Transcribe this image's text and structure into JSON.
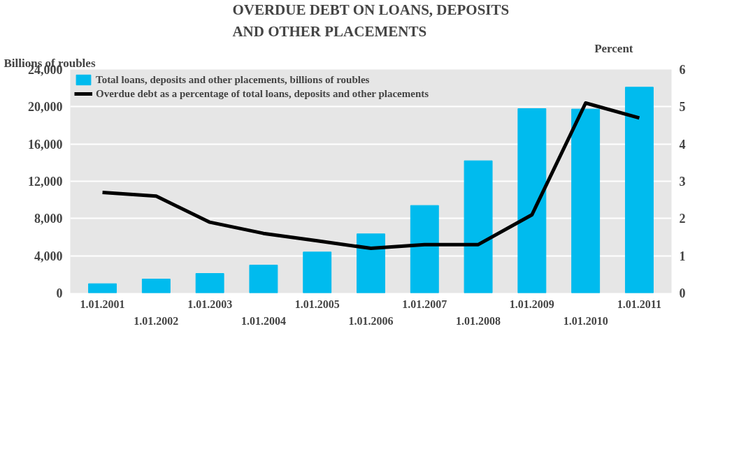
{
  "chart_data": {
    "type": "bar",
    "title": "OVERDUE DEBT ON LOANS, DEPOSITS\nAND OTHER PLACEMENTS",
    "ylabel": "Billions of roubles",
    "y2label": "Percent",
    "categories": [
      "1.01.2001",
      "1.01.2002",
      "1.01.2003",
      "1.01.2004",
      "1.01.2005",
      "1.01.2006",
      "1.01.2007",
      "1.01.2008",
      "1.01.2009",
      "1.01.2010",
      "1.01.2011"
    ],
    "series": [
      {
        "name": "Total loans, deposits and other placements, billions of roubles",
        "color": "#00bbee",
        "values": [
          1000,
          1500,
          2100,
          3000,
          4400,
          6350,
          9400,
          14200,
          19800,
          19750,
          22100
        ]
      },
      {
        "name": "Overdue debt as a percentage of total loans, deposits and other placements",
        "type": "line",
        "axis": "y2",
        "color": "#000000",
        "values": [
          2.7,
          2.6,
          1.9,
          1.6,
          1.4,
          1.2,
          1.3,
          1.3,
          2.1,
          5.1,
          4.7
        ]
      }
    ],
    "ylim": [
      0,
      24000
    ],
    "yticks": [
      0,
      {
        "value": 4000,
        "label": "4,000"
      },
      {
        "value": 8000,
        "label": "8,000"
      },
      {
        "value": 12000,
        "label": "12,000"
      },
      {
        "value": 16000,
        "label": "16,000"
      },
      {
        "value": 20000,
        "label": "20,000"
      },
      {
        "value": 24000,
        "label": "24,000"
      }
    ],
    "y2lim": [
      0,
      6
    ],
    "y2ticks": [
      0,
      1,
      2,
      3,
      4,
      5,
      6
    ],
    "grid": "y",
    "legend": "top left",
    "marker": "none",
    "line_style": "solid"
  }
}
